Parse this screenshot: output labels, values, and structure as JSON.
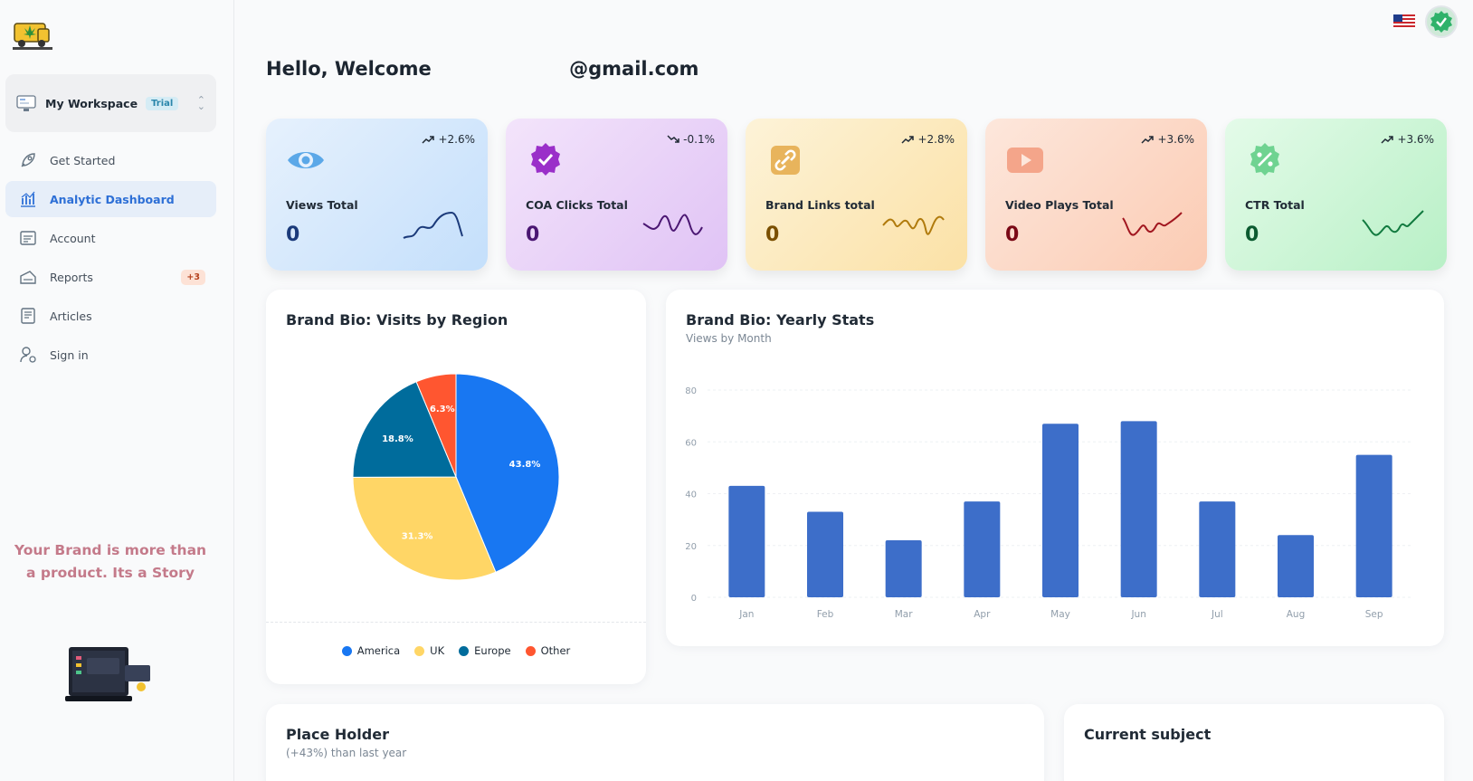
{
  "sidebar": {
    "workspace": {
      "label": "My Workspace",
      "badge": "Trial"
    },
    "items": [
      {
        "label": "Get Started",
        "icon": "rocket-icon"
      },
      {
        "label": "Analytic Dashboard",
        "icon": "analytics-icon",
        "active": true
      },
      {
        "label": "Account",
        "icon": "account-icon"
      },
      {
        "label": "Reports",
        "icon": "reports-icon",
        "badge": "+3"
      },
      {
        "label": "Articles",
        "icon": "articles-icon"
      },
      {
        "label": "Sign in",
        "icon": "sign-in-icon"
      }
    ],
    "tagline": "Your Brand is more than a product. Its a Story"
  },
  "header": {
    "greeting": "Hello, Welcome",
    "email_suffix": "@gmail.com"
  },
  "cards": [
    {
      "title": "Views Total",
      "value": "0",
      "trend": "+2.6%",
      "direction": "up",
      "icon": "eye-icon",
      "color": "#2065d1"
    },
    {
      "title": "COA Clicks Total",
      "value": "0",
      "trend": "-0.1%",
      "direction": "down",
      "icon": "verified-badge-icon",
      "color": "#7a0c9e"
    },
    {
      "title": "Brand Links total",
      "value": "0",
      "trend": "+2.8%",
      "direction": "up",
      "icon": "link-icon",
      "color": "#7a4f01"
    },
    {
      "title": "Video Plays Total",
      "value": "0",
      "trend": "+3.6%",
      "direction": "up",
      "icon": "play-icon",
      "color": "#7a0916"
    },
    {
      "title": "CTR Total",
      "value": "0",
      "trend": "+3.6%",
      "direction": "up",
      "icon": "percent-badge-icon",
      "color": "#0c6b3a"
    }
  ],
  "region_panel": {
    "title": "Brand Bio: Visits by Region"
  },
  "yearly_panel": {
    "title": "Brand Bio: Yearly Stats",
    "subtitle": "Views by Month"
  },
  "placeholder_panel": {
    "title": "Place Holder",
    "subtitle": "(+43%) than last year"
  },
  "subject_panel": {
    "title": "Current subject"
  },
  "chart_data": [
    {
      "type": "pie",
      "title": "Brand Bio: Visits by Region",
      "categories": [
        "America",
        "UK",
        "Europe",
        "Other"
      ],
      "values": [
        43.8,
        31.3,
        18.8,
        6.3
      ],
      "labels": [
        "43.8%",
        "31.3%",
        "18.8%",
        "6.3%"
      ],
      "colors": [
        "#1877f2",
        "#ffd666",
        "#006c9c",
        "#ff5630"
      ],
      "legend": "bottom"
    },
    {
      "type": "bar",
      "title": "Brand Bio: Yearly Stats",
      "subtitle": "Views by Month",
      "categories": [
        "Jan",
        "Feb",
        "Mar",
        "Apr",
        "May",
        "Jun",
        "Jul",
        "Aug",
        "Sep"
      ],
      "values": [
        43,
        33,
        22,
        37,
        67,
        68,
        37,
        24,
        55
      ],
      "yticks": [
        "0",
        "20",
        "40",
        "60",
        "80"
      ],
      "ylim": [
        0,
        80
      ],
      "color": "#3d6ec9",
      "grid": true
    }
  ]
}
